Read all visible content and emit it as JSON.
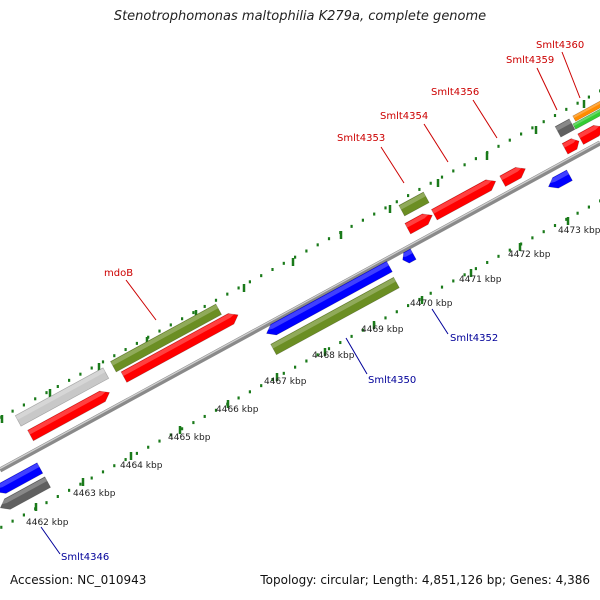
{
  "title": "Stenotrophomonas maltophilia K279a, complete genome",
  "footer": {
    "accession": "Accession: NC_010943",
    "topology": "Topology: circular",
    "length": "Length: 4,851,126 bp",
    "genes": "Genes: 4,386"
  },
  "ticks": [
    {
      "label": "4462 kbp"
    },
    {
      "label": "4463 kbp"
    },
    {
      "label": "4464 kbp"
    },
    {
      "label": "4465 kbp"
    },
    {
      "label": "4466 kbp"
    },
    {
      "label": "4467 kbp"
    },
    {
      "label": "4468 kbp"
    },
    {
      "label": "4469 kbp"
    },
    {
      "label": "4470 kbp"
    },
    {
      "label": "4471 kbp"
    },
    {
      "label": "4472 kbp"
    },
    {
      "label": "4473 kbp"
    }
  ],
  "gene_labels": [
    {
      "text": "mdoB",
      "strand": "forward"
    },
    {
      "text": "Smlt4353",
      "strand": "forward"
    },
    {
      "text": "Smlt4354",
      "strand": "forward"
    },
    {
      "text": "Smlt4356",
      "strand": "forward"
    },
    {
      "text": "Smlt4359",
      "strand": "forward"
    },
    {
      "text": "Smlt4360",
      "strand": "forward"
    },
    {
      "text": "Smlt4352",
      "strand": "reverse"
    },
    {
      "text": "Smlt4350",
      "strand": "reverse"
    },
    {
      "text": "Smlt4346",
      "strand": "reverse"
    }
  ],
  "colors": {
    "forward_label": "#cc0000",
    "reverse_label": "#000099",
    "cds_forward": "#ff0000",
    "cds_reverse": "#0000ff",
    "cog_green": "#6b8e23",
    "gray": "#c8c8c8",
    "dark_gray": "#606060",
    "orange": "#ff8c00",
    "lime": "#33cc33",
    "tick": "#1a7a1a",
    "backbone": "#999999"
  }
}
